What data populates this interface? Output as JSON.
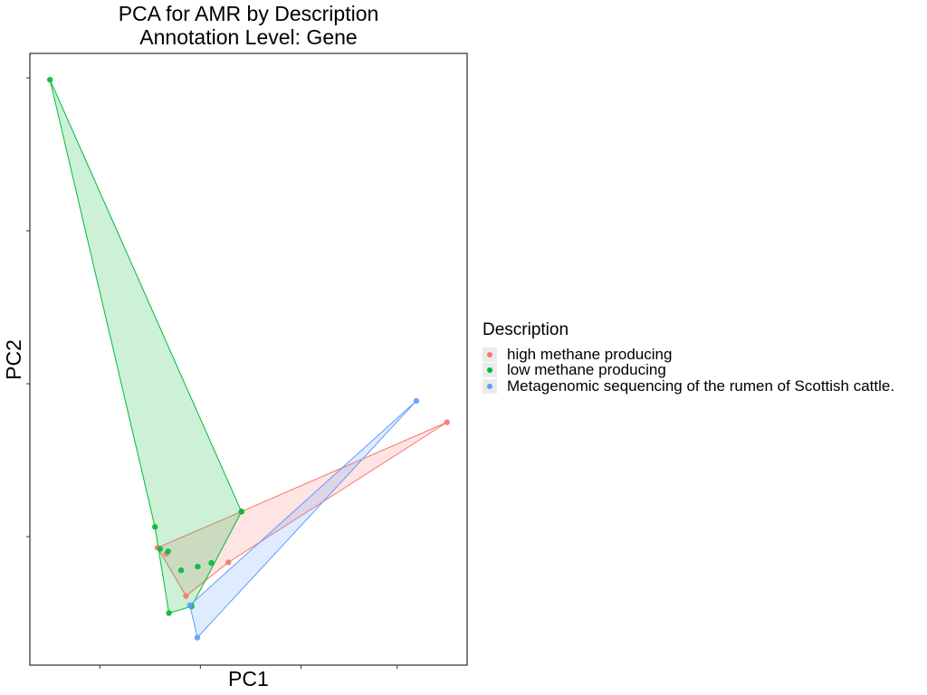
{
  "chart_data": {
    "type": "scatter",
    "title": [
      "PCA for AMR by Description",
      "Annotation Level: Gene"
    ],
    "xlabel": "PC1",
    "ylabel": "PC2",
    "xlim": [
      0,
      100
    ],
    "ylim": [
      0,
      100
    ],
    "grid": false,
    "legend_placement": "right",
    "legend_title": "Description",
    "series": [
      {
        "name": "high methane producing",
        "color": "#F8766D",
        "points": [
          [
            29.2,
            19.2
          ],
          [
            31.2,
            18.2
          ],
          [
            35.7,
            11.3
          ],
          [
            45.4,
            16.8
          ],
          [
            48.4,
            25.1
          ],
          [
            95.4,
            39.7
          ]
        ],
        "hull": [
          [
            29.2,
            19.2
          ],
          [
            35.7,
            11.3
          ],
          [
            45.4,
            16.8
          ],
          [
            95.4,
            39.7
          ],
          [
            48.4,
            25.1
          ]
        ]
      },
      {
        "name": "low methane producing",
        "color": "#00BA38",
        "points": [
          [
            4.6,
            95.7
          ],
          [
            28.6,
            22.6
          ],
          [
            48.4,
            25.1
          ],
          [
            31.6,
            18.6
          ],
          [
            29.8,
            19.0
          ],
          [
            34.6,
            15.5
          ],
          [
            38.4,
            16.1
          ],
          [
            41.5,
            16.7
          ],
          [
            37.0,
            9.6
          ],
          [
            31.8,
            8.5
          ]
        ],
        "hull": [
          [
            4.6,
            95.7
          ],
          [
            28.6,
            22.6
          ],
          [
            31.8,
            8.5
          ],
          [
            37.0,
            9.6
          ],
          [
            48.4,
            25.1
          ]
        ]
      },
      {
        "name": "Metagenomic sequencing of the rumen of Scottish cattle.",
        "color": "#619CFF",
        "points": [
          [
            38.3,
            4.5
          ],
          [
            36.6,
            9.8
          ],
          [
            88.4,
            43.2
          ]
        ],
        "hull": [
          [
            38.3,
            4.5
          ],
          [
            36.6,
            9.8
          ],
          [
            88.4,
            43.2
          ]
        ]
      }
    ]
  }
}
